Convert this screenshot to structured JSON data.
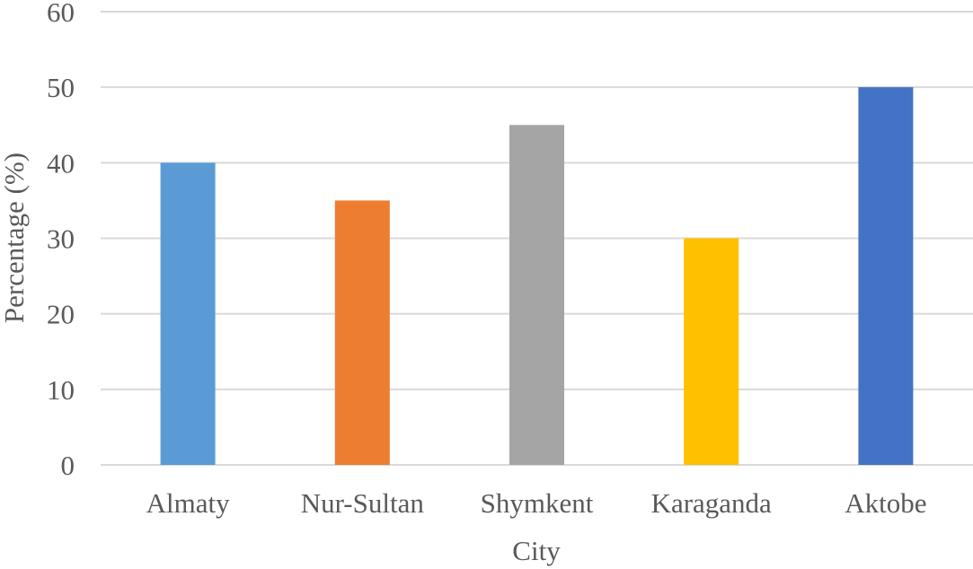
{
  "chart_data": {
    "type": "bar",
    "title": "",
    "xlabel": "City",
    "ylabel": "Percentage (%)",
    "categories": [
      "Almaty",
      "Nur-Sultan",
      "Shymkent",
      "Karaganda",
      "Aktobe"
    ],
    "values": [
      40,
      35,
      45,
      30,
      50
    ],
    "colors": [
      "#5b9bd5",
      "#ed7d31",
      "#a5a5a5",
      "#ffc000",
      "#4472c4"
    ],
    "ylim": [
      0,
      60
    ],
    "yticks": [
      "0",
      "10",
      "20",
      "30",
      "40",
      "50",
      "60"
    ],
    "grid": true,
    "gridline_color": "#d9d9d9",
    "legend": "none"
  }
}
